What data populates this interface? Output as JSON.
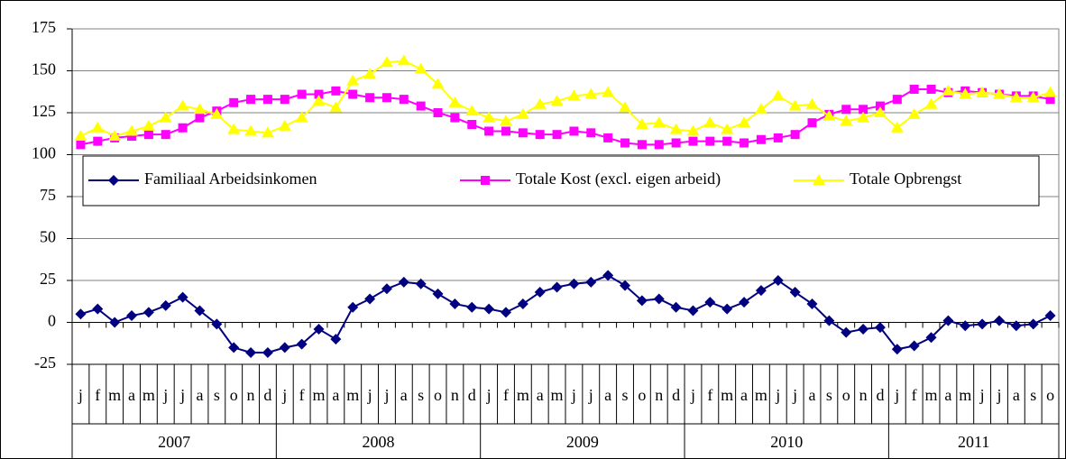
{
  "chart_data": {
    "type": "line",
    "categories": [
      "j",
      "f",
      "m",
      "a",
      "m",
      "j",
      "j",
      "a",
      "s",
      "o",
      "n",
      "d",
      "j",
      "f",
      "m",
      "a",
      "m",
      "j",
      "j",
      "a",
      "s",
      "o",
      "n",
      "d",
      "j",
      "f",
      "m",
      "a",
      "m",
      "j",
      "j",
      "a",
      "s",
      "o",
      "n",
      "d",
      "j",
      "f",
      "m",
      "a",
      "m",
      "j",
      "j",
      "a",
      "s",
      "o",
      "n",
      "d",
      "j",
      "f",
      "m",
      "a",
      "m",
      "j",
      "j",
      "a",
      "s",
      "o"
    ],
    "years": [
      "2007",
      "2008",
      "2009",
      "2010",
      "2011"
    ],
    "series": [
      {
        "name": "Familiaal Arbeidsinkomen",
        "color": "#000080",
        "marker": "diamond",
        "values": [
          5,
          8,
          0,
          4,
          6,
          10,
          15,
          7,
          -1,
          -15,
          -18,
          -18,
          -15,
          -13,
          -4,
          -10,
          9,
          14,
          20,
          24,
          23,
          17,
          11,
          9,
          8,
          6,
          11,
          18,
          21,
          23,
          24,
          28,
          22,
          13,
          14,
          9,
          7,
          12,
          8,
          12,
          19,
          25,
          18,
          11,
          1,
          -6,
          -4,
          -3,
          -16,
          -14,
          -9,
          1,
          -2,
          -1,
          1,
          -2,
          -1,
          4
        ]
      },
      {
        "name": "Totale Kost (excl. eigen arbeid)",
        "color": "#ff00ff",
        "marker": "square",
        "values": [
          106,
          108,
          110,
          111,
          112,
          112,
          116,
          122,
          126,
          131,
          133,
          133,
          133,
          136,
          136,
          138,
          136,
          134,
          134,
          133,
          129,
          125,
          122,
          118,
          114,
          114,
          113,
          112,
          112,
          114,
          113,
          110,
          107,
          106,
          106,
          107,
          108,
          108,
          108,
          107,
          109,
          110,
          112,
          119,
          124,
          127,
          127,
          129,
          133,
          139,
          139,
          137,
          138,
          137,
          136,
          135,
          135,
          133
        ]
      },
      {
        "name": "Totale Opbrengst",
        "color": "#ffff00",
        "marker": "triangle",
        "values": [
          111,
          116,
          111,
          114,
          117,
          122,
          129,
          127,
          124,
          115,
          114,
          113,
          117,
          122,
          132,
          128,
          144,
          148,
          155,
          156,
          151,
          142,
          131,
          126,
          122,
          120,
          124,
          130,
          132,
          135,
          136,
          137,
          128,
          118,
          119,
          115,
          114,
          119,
          115,
          119,
          127,
          135,
          129,
          130,
          123,
          120,
          122,
          125,
          116,
          124,
          130,
          138,
          136,
          137,
          136,
          134,
          134,
          137
        ]
      }
    ],
    "ylim": [
      -25,
      175
    ],
    "yticks": [
      -25,
      0,
      25,
      50,
      75,
      100,
      125,
      150,
      175
    ],
    "grid": true
  }
}
